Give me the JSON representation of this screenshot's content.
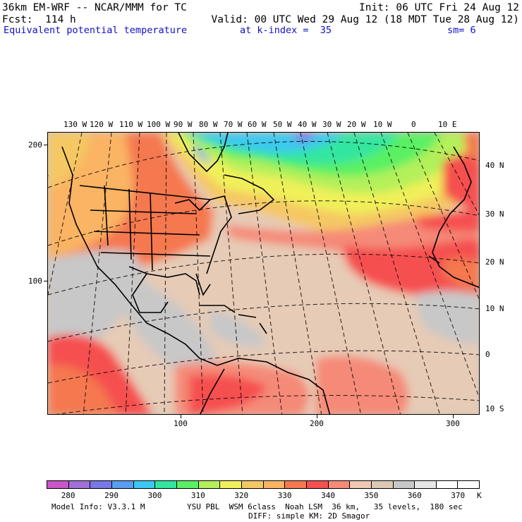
{
  "header": {
    "model_title": "36km EM-WRF -- NCAR/MMM for TC",
    "init_time": "Init: 06 UTC Fri 24 Aug 12",
    "forecast": "Fcst:  114 h",
    "valid_time": "Valid: 00 UTC Wed 29 Aug 12 (18 MDT Tue 28 Aug 12)",
    "field_name": "Equivalent potential temperature",
    "level": "at k-index =  35",
    "smoothing": "sm= 6"
  },
  "map": {
    "top_longitude_labels": [
      "130 W",
      "120 W",
      "110 W",
      "100 W",
      "90 W",
      "80 W",
      "70 W",
      "60 W",
      "50 W",
      "40 W",
      "30 W",
      "20 W",
      "10 W",
      "0",
      "10 E"
    ],
    "right_latitude_labels": [
      "40 N",
      "30 N",
      "20 N",
      "10 N",
      "0",
      "10 S"
    ],
    "left_grid_labels": [
      "200",
      "100"
    ],
    "bottom_grid_labels": [
      "100",
      "200",
      "300"
    ]
  },
  "legend": {
    "colors": [
      "#c856c8",
      "#a070d8",
      "#7878e6",
      "#5a9ef0",
      "#3cc8f0",
      "#30e6a0",
      "#5af064",
      "#b4f05a",
      "#f0f05a",
      "#f5c864",
      "#fab464",
      "#f57850",
      "#f55050",
      "#f58a78",
      "#f0c8b4",
      "#dcc8b4",
      "#c8c8c8",
      "#e6e6e6",
      "#ffffff",
      "#ffffff"
    ],
    "labels": [
      "280",
      "290",
      "300",
      "310",
      "320",
      "330",
      "340",
      "350",
      "360",
      "370"
    ],
    "units": "K"
  },
  "footer": {
    "model_info": "Model Info: V3.3.1 M",
    "physics_line1": "YSU PBL  WSM 6class  Noah LSM  36 km,   35 levels,  180 sec",
    "physics_line2": "DIFF: simple KM: 2D Smagor"
  }
}
